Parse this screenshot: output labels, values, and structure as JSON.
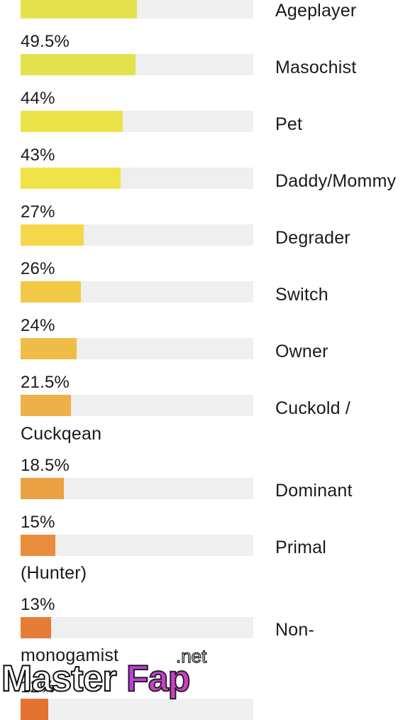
{
  "items": [
    {
      "label": "Ageplayer",
      "percent": "",
      "value": 50,
      "color": "#e3e24d"
    },
    {
      "label": "Masochist",
      "percent": "49.5%",
      "value": 49.5,
      "color": "#e3e24d"
    },
    {
      "label": "Pet",
      "percent": "44%",
      "value": 44,
      "color": "#ece24a"
    },
    {
      "label": "Daddy/Mommy",
      "percent": "43%",
      "value": 43,
      "color": "#f0e347"
    },
    {
      "label": "Degrader",
      "percent": "27%",
      "value": 27,
      "color": "#f4d84a"
    },
    {
      "label": "Switch",
      "percent": "26%",
      "value": 26,
      "color": "#f1c944"
    },
    {
      "label": "Owner",
      "percent": "24%",
      "value": 24,
      "color": "#efbc48"
    },
    {
      "label": "Cuckold /",
      "label_line2": "Cuckqean",
      "percent": "21.5%",
      "value": 21.5,
      "color": "#eeb048"
    },
    {
      "label": "Dominant",
      "percent": "18.5%",
      "value": 18.5,
      "color": "#eba042"
    },
    {
      "label": "Primal",
      "label_line2": "(Hunter)",
      "percent": "15%",
      "value": 15,
      "color": "#e98c3c"
    },
    {
      "label": "Non-",
      "label_line2": "monogamist",
      "percent": "13%",
      "value": 13,
      "color": "#e67d37"
    },
    {
      "label": "",
      "percent": "12%",
      "value": 12,
      "color": "#e3722f"
    }
  ],
  "watermark": {
    "brand_part1": "Master",
    "brand_part2": "Fap",
    "brand_tld": ".net"
  },
  "colors": {
    "track": "#efefef",
    "text": "#1a1a1a"
  }
}
